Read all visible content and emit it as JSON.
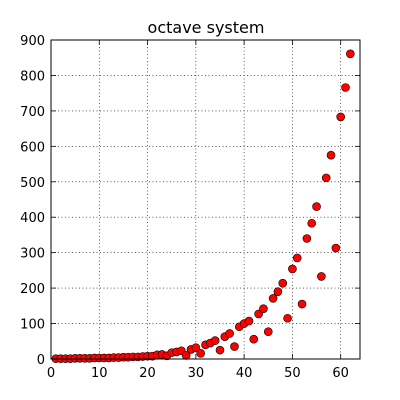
{
  "chart_data": {
    "type": "scatter",
    "title": "octave system",
    "xlabel": "",
    "ylabel": "",
    "xlim": [
      0,
      64
    ],
    "ylim": [
      0,
      900
    ],
    "xticks": [
      0,
      10,
      20,
      30,
      40,
      50,
      60
    ],
    "yticks": [
      0,
      100,
      200,
      300,
      400,
      500,
      600,
      700,
      800,
      900
    ],
    "grid": true,
    "marker_color": "#ff0000",
    "marker_edge_color": "#000000",
    "series": [
      {
        "x": [
          1,
          2,
          3,
          4,
          5,
          6,
          7,
          8,
          9,
          10,
          11,
          12,
          13,
          14,
          15,
          16,
          17,
          18,
          19,
          20,
          21,
          22,
          23,
          24,
          25,
          26,
          27,
          28,
          29,
          30,
          31,
          32,
          33,
          34,
          35,
          36,
          37,
          38,
          39,
          40,
          41,
          42,
          43,
          44,
          45,
          46,
          47,
          48,
          49,
          50,
          51,
          52,
          53,
          54,
          55,
          56,
          57,
          58,
          59,
          60,
          61,
          62
        ],
        "y": [
          1,
          1,
          1,
          1,
          2,
          2,
          2,
          2,
          3,
          3,
          3,
          3,
          4,
          4,
          5,
          5,
          6,
          6,
          7,
          8,
          8,
          12,
          13,
          9,
          18,
          20,
          23,
          10,
          27,
          32,
          16,
          40,
          45,
          52,
          25,
          63,
          72,
          35,
          91,
          100,
          107,
          56,
          127,
          142,
          77,
          171,
          190,
          214,
          115,
          254,
          285,
          155,
          340,
          383,
          430,
          233,
          511,
          575,
          313,
          683,
          766,
          861
        ]
      }
    ]
  }
}
